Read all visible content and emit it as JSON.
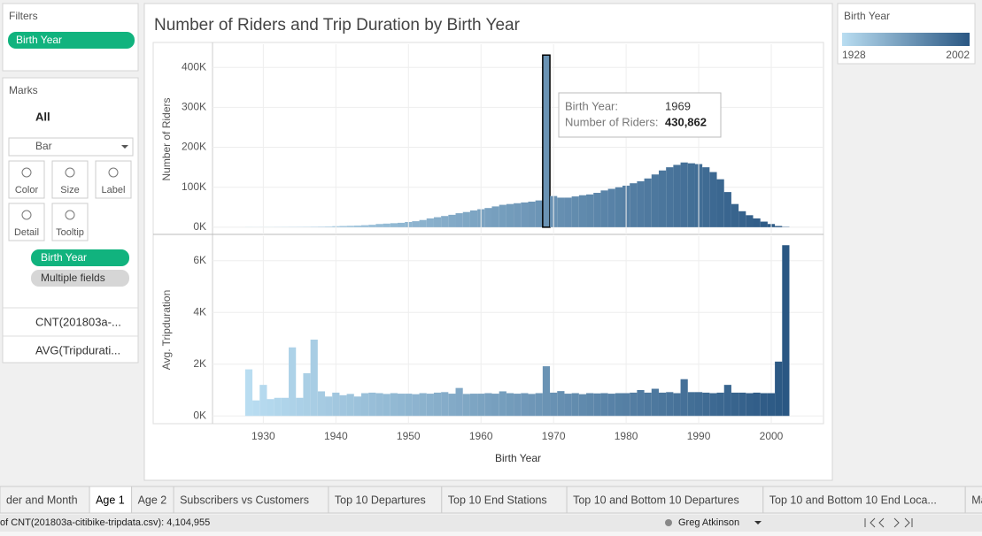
{
  "sidebar": {
    "filters_title": "Filters",
    "filter_pill": "Birth Year",
    "marks_title": "Marks",
    "all": "All",
    "mark_type": "Bar",
    "buttons": [
      "Color",
      "Size",
      "Label",
      "Detail",
      "Tooltip"
    ],
    "color_pill": "Birth Year",
    "tooltip_pill": "Multiple fields",
    "measures": [
      "CNT(201803a-...",
      "AVG(Tripdurati..."
    ]
  },
  "dashboard_title": "Number of Riders and Trip Duration by Birth Year",
  "legend": {
    "title": "Birth Year",
    "min": "1928",
    "max": "2002",
    "colors": [
      "#b9ddf1",
      "#2a5783"
    ]
  },
  "tooltip": {
    "key1": "Birth Year:",
    "val1": "1969",
    "key2": "Number of Riders:",
    "val2": "430,862"
  },
  "chart_data": [
    {
      "type": "bar",
      "ylabel": "Number of Riders",
      "x": [
        1928,
        1929,
        1930,
        1931,
        1932,
        1933,
        1934,
        1935,
        1936,
        1937,
        1938,
        1939,
        1940,
        1941,
        1942,
        1943,
        1944,
        1945,
        1946,
        1947,
        1948,
        1949,
        1950,
        1951,
        1952,
        1953,
        1954,
        1955,
        1956,
        1957,
        1958,
        1959,
        1960,
        1961,
        1962,
        1963,
        1964,
        1965,
        1966,
        1967,
        1968,
        1969,
        1970,
        1971,
        1972,
        1973,
        1974,
        1975,
        1976,
        1977,
        1978,
        1979,
        1980,
        1981,
        1982,
        1983,
        1984,
        1985,
        1986,
        1987,
        1988,
        1989,
        1990,
        1991,
        1992,
        1993,
        1994,
        1995,
        1996,
        1997,
        1998,
        1999,
        2000,
        2001,
        2002
      ],
      "values": [
        300,
        200,
        300,
        300,
        400,
        500,
        600,
        700,
        800,
        1000,
        1200,
        1500,
        2500,
        3000,
        3500,
        4000,
        5000,
        6000,
        8000,
        9000,
        10000,
        11000,
        13000,
        15000,
        18000,
        22000,
        25000,
        28000,
        31000,
        35000,
        38000,
        42000,
        45000,
        48000,
        52000,
        56000,
        58000,
        60000,
        62000,
        64000,
        67000,
        430862,
        78000,
        74000,
        74000,
        77000,
        80000,
        82000,
        86000,
        92000,
        96000,
        100000,
        104000,
        110000,
        115000,
        122000,
        132000,
        142000,
        150000,
        156000,
        162000,
        160000,
        158000,
        150000,
        138000,
        120000,
        88000,
        58000,
        40000,
        30000,
        22000,
        14000,
        8000,
        3000,
        800
      ],
      "xlim": [
        1923,
        2007.2
      ],
      "ylim": [
        -18000,
        458000
      ],
      "yticks": [
        {
          "value": 0,
          "label": "0K"
        },
        {
          "value": 100000,
          "label": "100K"
        },
        {
          "value": 200000,
          "label": "200K"
        },
        {
          "value": 300000,
          "label": "300K"
        },
        {
          "value": 400000,
          "label": "400K"
        }
      ],
      "grid": true
    },
    {
      "type": "bar",
      "ylabel": "Avg. Tripduration",
      "xlabel": "Birth Year",
      "x": [
        1928,
        1929,
        1930,
        1931,
        1932,
        1933,
        1934,
        1935,
        1936,
        1937,
        1938,
        1939,
        1940,
        1941,
        1942,
        1943,
        1944,
        1945,
        1946,
        1947,
        1948,
        1949,
        1950,
        1951,
        1952,
        1953,
        1954,
        1955,
        1956,
        1957,
        1958,
        1959,
        1960,
        1961,
        1962,
        1963,
        1964,
        1965,
        1966,
        1967,
        1968,
        1969,
        1970,
        1971,
        1972,
        1973,
        1974,
        1975,
        1976,
        1977,
        1978,
        1979,
        1980,
        1981,
        1982,
        1983,
        1984,
        1985,
        1986,
        1987,
        1988,
        1989,
        1990,
        1991,
        1992,
        1993,
        1994,
        1995,
        1996,
        1997,
        1998,
        1999,
        2000,
        2001,
        2002
      ],
      "values": [
        1800,
        600,
        1200,
        650,
        700,
        700,
        2650,
        700,
        1650,
        2950,
        950,
        750,
        900,
        800,
        850,
        750,
        880,
        900,
        880,
        850,
        880,
        860,
        860,
        840,
        880,
        860,
        900,
        920,
        860,
        1080,
        850,
        860,
        860,
        880,
        860,
        950,
        880,
        860,
        880,
        850,
        880,
        1920,
        900,
        960,
        860,
        880,
        840,
        880,
        870,
        880,
        860,
        880,
        880,
        900,
        1000,
        900,
        1050,
        900,
        920,
        880,
        1420,
        920,
        920,
        900,
        880,
        900,
        1200,
        900,
        900,
        880,
        900,
        880,
        880,
        2100,
        6600
      ],
      "xlim": [
        1923,
        2007.2
      ],
      "ylim": [
        -300,
        6950
      ],
      "xticks": [
        1930,
        1940,
        1950,
        1960,
        1970,
        1980,
        1990,
        2000
      ],
      "yticks": [
        {
          "value": 0,
          "label": "0K"
        },
        {
          "value": 2000,
          "label": "2K"
        },
        {
          "value": 4000,
          "label": "4K"
        },
        {
          "value": 6000,
          "label": "6K"
        }
      ],
      "grid": true
    }
  ],
  "tabs": [
    "der and Month",
    "Age 1",
    "Age 2",
    "Subscribers vs Customers",
    "Top 10 Departures",
    "Top 10 End Stations",
    "Top 10 and Bottom 10 Departures",
    "Top 10 and Bottom 10 End Loca...",
    "Ma"
  ],
  "active_tab": "Age 1",
  "status": {
    "summary": "of CNT(201803a-citibike-tripdata.csv): 4,104,955",
    "user": "Greg Atkinson"
  }
}
